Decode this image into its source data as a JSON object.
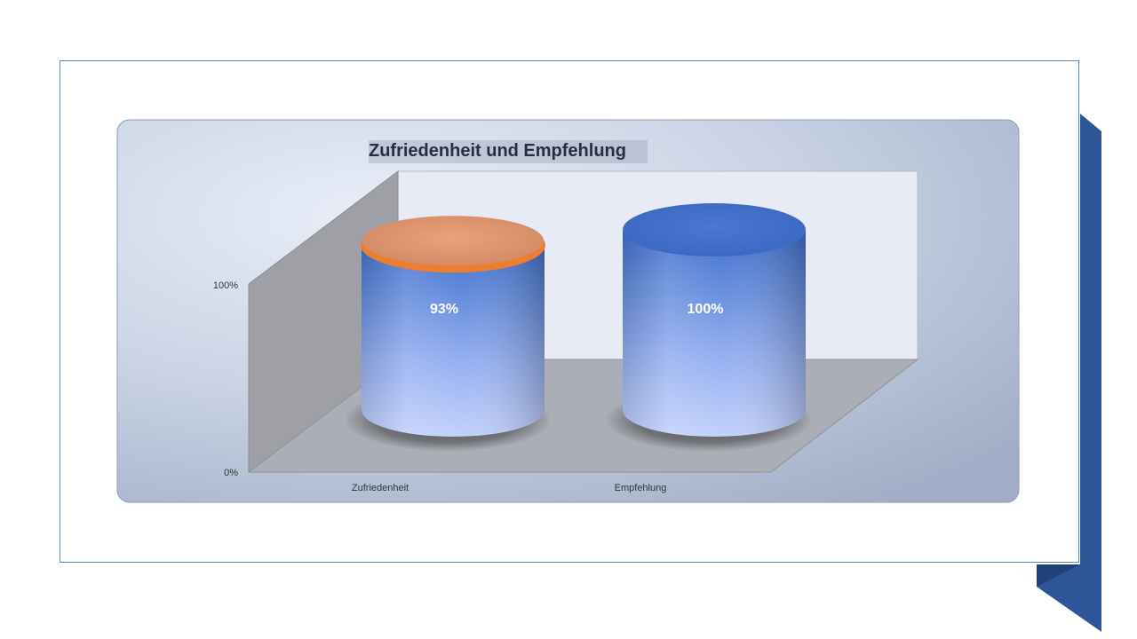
{
  "chart_data": {
    "type": "bar",
    "style": "3d-cylinder",
    "title": "Zufriedenheit und Empfehlung",
    "categories": [
      "Zufriedenheit",
      "Empfehlung"
    ],
    "series": [
      {
        "values": [
          0.93,
          1.0
        ],
        "value_labels": [
          "93%",
          "100%"
        ]
      }
    ],
    "ylim": [
      0,
      1
    ],
    "yticks": [
      "0%",
      "100%"
    ],
    "xlabel": "",
    "ylabel": "",
    "legend": "none",
    "highlight": {
      "category": "Zufriedenheit",
      "color": "#ed7d31"
    }
  },
  "colors": {
    "bar": "#4472c4",
    "accent_ribbon": "#2e5597",
    "frame_border": "#5b8bb8"
  }
}
